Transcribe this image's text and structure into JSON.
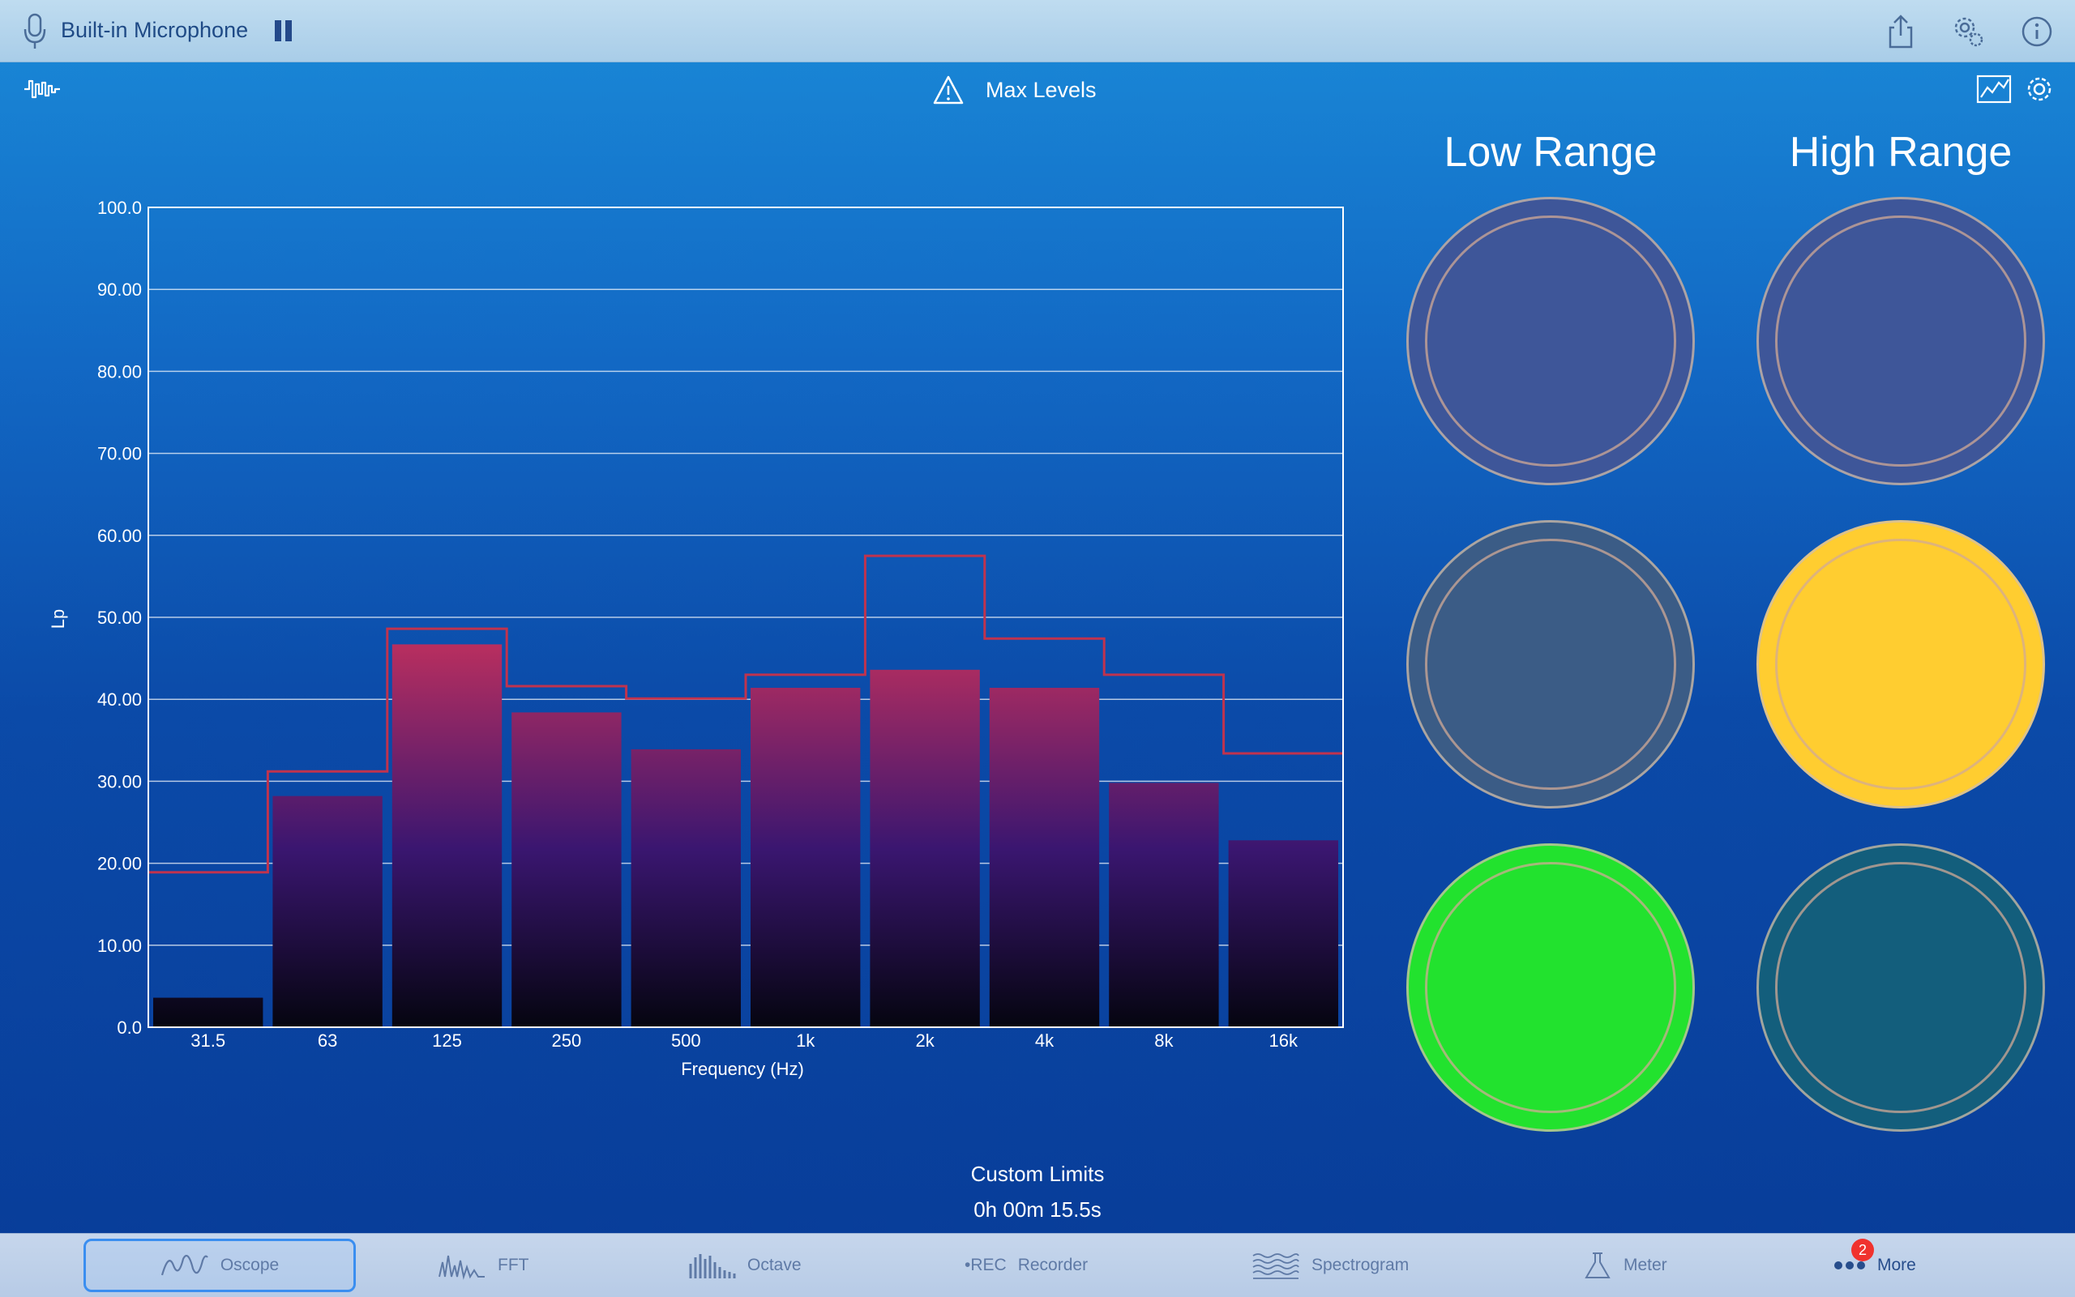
{
  "topbar": {
    "source_label": "Built-in Microphone",
    "icons": [
      "microphone-icon",
      "pause-icon",
      "share-icon",
      "settings-gear-icon",
      "info-icon"
    ]
  },
  "header": {
    "title": "Max Levels",
    "icons": [
      "waveform-icon",
      "warning-icon",
      "chart-icon",
      "gear-icon"
    ]
  },
  "ranges": {
    "low_label": "Low Range",
    "high_label": "High Range",
    "colors": {
      "low": [
        "#3e5699",
        "#3b5c86",
        "#22e22e"
      ],
      "high": [
        "#3e5699",
        "#ffcd30",
        "#135e7c"
      ]
    }
  },
  "chart_data": {
    "type": "bar",
    "xlabel": "Frequency (Hz)",
    "ylabel": "Lp",
    "ylim": [
      0,
      100
    ],
    "yticks": [
      "0.0",
      "10.00",
      "20.00",
      "30.00",
      "40.00",
      "50.00",
      "60.00",
      "70.00",
      "80.00",
      "90.00",
      "100.0"
    ],
    "categories": [
      "31.5",
      "63",
      "125",
      "250",
      "500",
      "1k",
      "2k",
      "4k",
      "8k",
      "16k"
    ],
    "series": [
      {
        "values": [
          3.6,
          28.2,
          46.7,
          38.4,
          33.9,
          41.4,
          43.6,
          41.4,
          29.8,
          22.8
        ]
      },
      {
        "values": [
          18.9,
          31.2,
          48.6,
          41.6,
          40.1,
          43.0,
          57.5,
          47.4,
          43.0,
          33.4
        ]
      }
    ],
    "grid": true,
    "bar_colors": {
      "top": "#c0305e",
      "mid": "#3a1670",
      "bottom": "#050510"
    },
    "limit_line_color": "#c0334e"
  },
  "status": {
    "title": "Custom Limits",
    "elapsed": "0h 00m 15.5s"
  },
  "tabs": [
    {
      "label": "Oscope",
      "icon": "oscope-icon",
      "active": true
    },
    {
      "label": "FFT",
      "icon": "fft-icon",
      "active": false
    },
    {
      "label": "Octave",
      "icon": "octave-icon",
      "active": false
    },
    {
      "label": "Recorder",
      "icon": "rec-icon",
      "icon_text": "•REC",
      "active": false
    },
    {
      "label": "Spectrogram",
      "icon": "spectrogram-icon",
      "active": false
    },
    {
      "label": "Meter",
      "icon": "meter-icon",
      "active": false
    },
    {
      "label": "More",
      "icon": "more-icon",
      "badge": "2",
      "active": false
    }
  ]
}
